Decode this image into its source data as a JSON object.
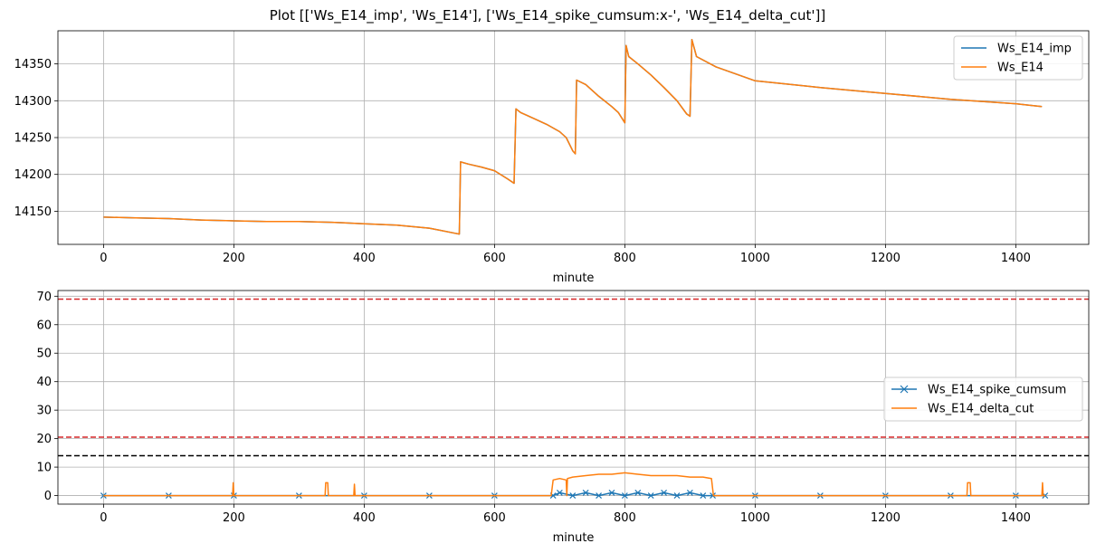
{
  "figure_title": "Plot [['Ws_E14_imp', 'Ws_E14'], ['Ws_E14_spike_cumsum:x-', 'Ws_E14_delta_cut']]",
  "colors": {
    "blue": "#1f77b4",
    "orange": "#ff7f0e",
    "red": "#d62728",
    "black": "#000000",
    "grid": "#b0b0b0"
  },
  "chart_data": [
    {
      "type": "line",
      "xlabel": "minute",
      "ylabel": "",
      "xlim": [
        -70,
        1512
      ],
      "ylim": [
        14105,
        14395
      ],
      "xticks": [
        0,
        200,
        400,
        600,
        800,
        1000,
        1200,
        1400
      ],
      "yticks": [
        14150,
        14200,
        14250,
        14300,
        14350
      ],
      "grid": true,
      "legend_position": "top-right",
      "series": [
        {
          "name": "Ws_E14_imp",
          "color": "#1f77b4",
          "marker": "",
          "x": [
            0,
            50,
            100,
            150,
            200,
            250,
            300,
            350,
            400,
            450,
            500,
            540,
            546,
            548,
            560,
            580,
            600,
            620,
            630,
            633,
            640,
            660,
            680,
            700,
            710,
            720,
            724,
            726,
            740,
            760,
            780,
            790,
            800,
            802,
            806,
            820,
            840,
            860,
            880,
            895,
            900,
            903,
            910,
            940,
            1000,
            1100,
            1200,
            1300,
            1400,
            1440
          ],
          "y": [
            14142,
            14141,
            14140,
            14138,
            14137,
            14136,
            14136,
            14135,
            14133,
            14131,
            14127,
            14120,
            14119,
            14217,
            14214,
            14210,
            14205,
            14194,
            14188,
            14289,
            14284,
            14276,
            14268,
            14258,
            14250,
            14232,
            14228,
            14328,
            14322,
            14306,
            14292,
            14284,
            14270,
            14375,
            14360,
            14350,
            14335,
            14318,
            14300,
            14282,
            14279,
            14383,
            14360,
            14346,
            14327,
            14318,
            14310,
            14302,
            14296,
            14292
          ]
        },
        {
          "name": "Ws_E14",
          "color": "#ff7f0e",
          "marker": "",
          "x": [
            0,
            50,
            100,
            150,
            200,
            250,
            300,
            350,
            400,
            450,
            500,
            540,
            546,
            548,
            560,
            580,
            600,
            620,
            630,
            633,
            640,
            660,
            680,
            700,
            710,
            720,
            724,
            726,
            740,
            760,
            780,
            790,
            800,
            802,
            806,
            820,
            840,
            860,
            880,
            895,
            900,
            903,
            910,
            940,
            1000,
            1100,
            1200,
            1300,
            1400,
            1440
          ],
          "y": [
            14142,
            14141,
            14140,
            14138,
            14137,
            14136,
            14136,
            14135,
            14133,
            14131,
            14127,
            14120,
            14119,
            14217,
            14214,
            14210,
            14205,
            14194,
            14188,
            14289,
            14284,
            14276,
            14268,
            14258,
            14250,
            14232,
            14228,
            14328,
            14322,
            14306,
            14292,
            14284,
            14270,
            14375,
            14360,
            14350,
            14335,
            14318,
            14300,
            14282,
            14279,
            14383,
            14360,
            14346,
            14327,
            14318,
            14310,
            14302,
            14296,
            14292
          ]
        }
      ]
    },
    {
      "type": "line",
      "xlabel": "minute",
      "ylabel": "",
      "xlim": [
        -70,
        1512
      ],
      "ylim": [
        -3,
        72
      ],
      "xticks": [
        0,
        200,
        400,
        600,
        800,
        1000,
        1200,
        1400
      ],
      "yticks": [
        0,
        10,
        20,
        30,
        40,
        50,
        60,
        70
      ],
      "grid": true,
      "legend_position": "center-right",
      "hlines": [
        {
          "y": 69,
          "color": "#d62728",
          "style": "dashed"
        },
        {
          "y": 20.5,
          "color": "#d62728",
          "style": "dashed"
        },
        {
          "y": 14,
          "color": "#000000",
          "style": "dashed"
        }
      ],
      "series": [
        {
          "name": "Ws_E14_spike_cumsum",
          "color": "#1f77b4",
          "marker": "x",
          "x": [
            0,
            100,
            200,
            300,
            400,
            500,
            600,
            690,
            700,
            720,
            740,
            760,
            780,
            800,
            820,
            840,
            860,
            880,
            900,
            920,
            935,
            1000,
            1100,
            1200,
            1300,
            1400,
            1445
          ],
          "y": [
            0,
            0,
            0,
            0,
            0,
            0,
            0,
            0,
            1,
            0,
            1,
            0,
            1,
            0,
            1,
            0,
            1,
            0,
            1,
            0,
            0,
            0,
            0,
            0,
            0,
            0,
            0
          ]
        },
        {
          "name": "Ws_E14_delta_cut",
          "color": "#ff7f0e",
          "marker": "",
          "x": [
            0,
            198,
            199,
            200,
            201,
            340,
            341,
            344,
            345,
            384,
            385,
            386,
            687,
            690,
            700,
            710,
            711,
            712,
            720,
            740,
            760,
            780,
            800,
            820,
            840,
            860,
            880,
            900,
            920,
            933,
            936,
            1325,
            1326,
            1330,
            1331,
            1440,
            1441,
            1442,
            1445
          ],
          "y": [
            0,
            0,
            4.5,
            0,
            0,
            0,
            4.5,
            4.5,
            0,
            0,
            4,
            0,
            0,
            5.5,
            6,
            5.5,
            0,
            6,
            6.5,
            7,
            7.5,
            7.5,
            8,
            7.5,
            7,
            7,
            7,
            6.5,
            6.5,
            6,
            0,
            0,
            4.5,
            4.5,
            0,
            0,
            4.5,
            0,
            0
          ]
        }
      ]
    }
  ]
}
